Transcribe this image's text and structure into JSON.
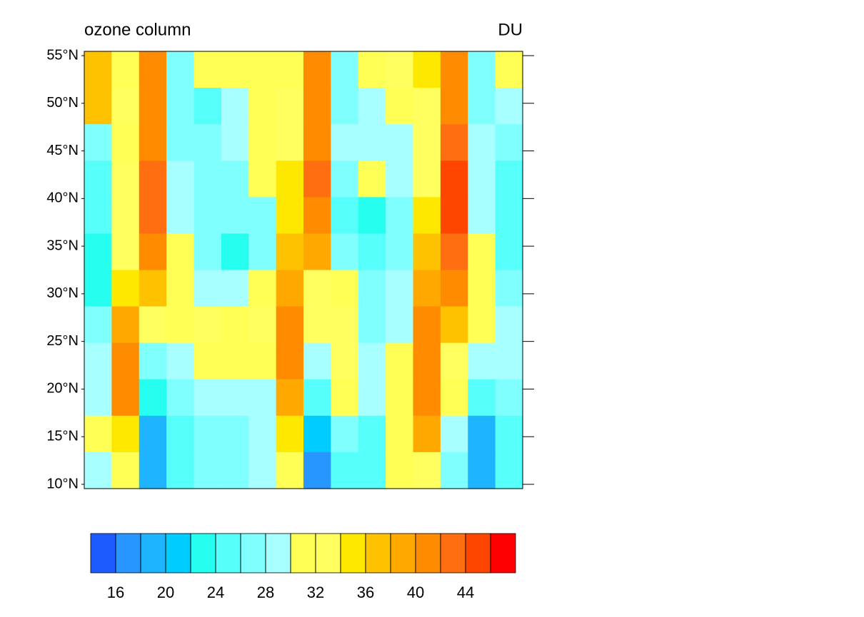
{
  "chart_data": {
    "type": "contour",
    "title": "ozone column",
    "units": "DU",
    "ylim": [
      9.55,
      55.45
    ],
    "yticks": [
      {
        "value": 10,
        "label": "10°N"
      },
      {
        "value": 15,
        "label": "15°N"
      },
      {
        "value": 20,
        "label": "20°N"
      },
      {
        "value": 25,
        "label": "25°N"
      },
      {
        "value": 30,
        "label": "30°N"
      },
      {
        "value": 35,
        "label": "35°N"
      },
      {
        "value": 40,
        "label": "40°N"
      },
      {
        "value": 45,
        "label": "45°N"
      },
      {
        "value": 50,
        "label": "50°N"
      },
      {
        "value": 55,
        "label": "55°N"
      }
    ],
    "z": [
      [
        37,
        31,
        40,
        27,
        30,
        30,
        31,
        31,
        40,
        27,
        30,
        33,
        35,
        40,
        26,
        31
      ],
      [
        37,
        33,
        41,
        26,
        25,
        29,
        30,
        32,
        40,
        27,
        29,
        30,
        32,
        40,
        26,
        28
      ],
      [
        27,
        31,
        41,
        26,
        26,
        29,
        30,
        33,
        41,
        28,
        29,
        28,
        32,
        42,
        28,
        26
      ],
      [
        25,
        33,
        43,
        28,
        26,
        27,
        30,
        34,
        42,
        27,
        30,
        28,
        33,
        44,
        28,
        25
      ],
      [
        24,
        33,
        43,
        29,
        26,
        26,
        27,
        35,
        40,
        24,
        22,
        27,
        34,
        45,
        29,
        24
      ],
      [
        23,
        32,
        41,
        30,
        26,
        22,
        27,
        36,
        38,
        26,
        24,
        27,
        36,
        42,
        30,
        25
      ],
      [
        22,
        34,
        37,
        31,
        28,
        28,
        30,
        38,
        33,
        30,
        26,
        28,
        38,
        40,
        31,
        27
      ],
      [
        27,
        38,
        32,
        31,
        32,
        31,
        32,
        40,
        32,
        32,
        27,
        29,
        40,
        36,
        31,
        28
      ],
      [
        28,
        40,
        27,
        28,
        31,
        31,
        31,
        40,
        29,
        32,
        28,
        30,
        40,
        33,
        28,
        28
      ],
      [
        29,
        40,
        22,
        26,
        29,
        28,
        29,
        38,
        25,
        31,
        28,
        30,
        40,
        30,
        24,
        27
      ],
      [
        30,
        34,
        19,
        24,
        27,
        27,
        29,
        34,
        20,
        27,
        25,
        31,
        38,
        28,
        19,
        25
      ],
      [
        29,
        31,
        18,
        24,
        26,
        27,
        28,
        31,
        16,
        25,
        24,
        30,
        32,
        27,
        18,
        24
      ]
    ],
    "levels": [
      16,
      18,
      20,
      22,
      24,
      26,
      28,
      30,
      32,
      34,
      36,
      38,
      40,
      42,
      44,
      46
    ],
    "colorbar_ticks": [
      16,
      20,
      24,
      28,
      32,
      36,
      40,
      44
    ],
    "colors": [
      "#1f5cff",
      "#2896ff",
      "#1fb4ff",
      "#00ccff",
      "#26fff0",
      "#57fffa",
      "#80ffff",
      "#a8ffff",
      "#ffff55",
      "#ffff60",
      "#ffe800",
      "#ffc200",
      "#ffa800",
      "#ff8c00",
      "#ff6e10",
      "#ff4600",
      "#ff0000"
    ]
  }
}
